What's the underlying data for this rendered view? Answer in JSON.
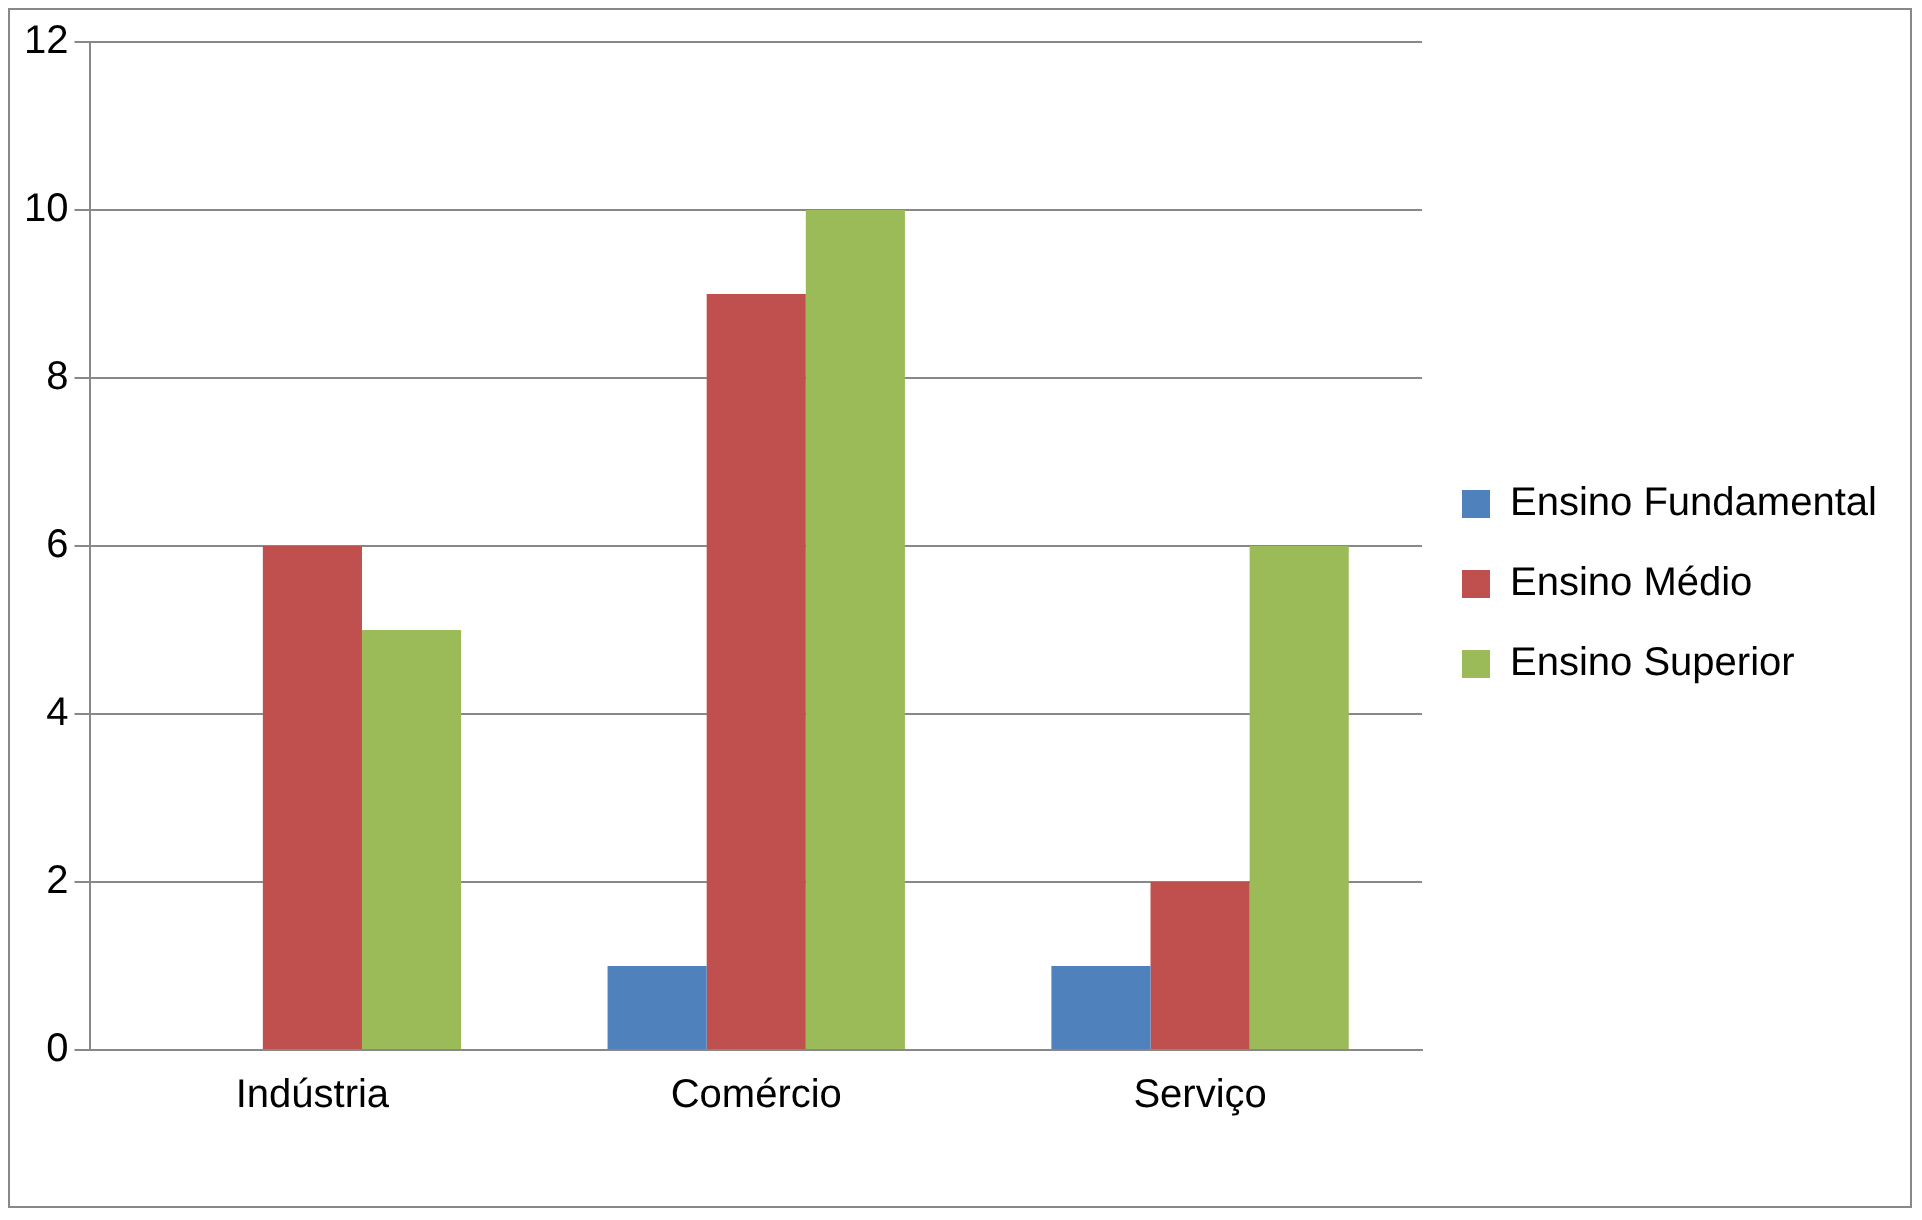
{
  "chart_data": {
    "type": "bar",
    "categories": [
      "Indústria",
      "Comércio",
      "Serviço"
    ],
    "series": [
      {
        "name": "Ensino Fundamental",
        "color": "#4f81bd",
        "values": [
          0,
          1,
          1
        ]
      },
      {
        "name": "Ensino Médio",
        "color": "#c0504d",
        "values": [
          6,
          9,
          2
        ]
      },
      {
        "name": "Ensino Superior",
        "color": "#9bbb59",
        "values": [
          5,
          10,
          6
        ]
      }
    ],
    "ylim": [
      0,
      12
    ],
    "yticks": [
      0,
      2,
      4,
      6,
      8,
      10,
      12
    ],
    "grid": "y",
    "legend": "right"
  }
}
